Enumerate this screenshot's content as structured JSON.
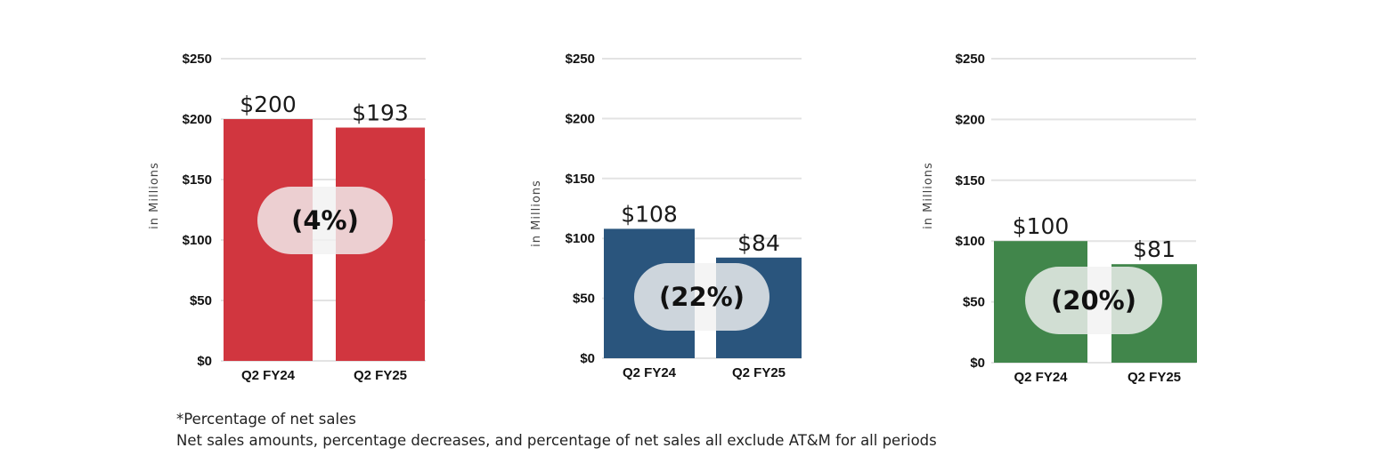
{
  "chart_data": [
    {
      "type": "bar",
      "categories": [
        "Q2 FY24",
        "Q2 FY25"
      ],
      "values": [
        200,
        193
      ],
      "value_labels": [
        "$200",
        "$193"
      ],
      "change_label": "(4%)",
      "ylabel": "in Millions",
      "ylim": [
        0,
        250
      ],
      "yticks": [
        0,
        50,
        100,
        150,
        200,
        250
      ],
      "ytick_labels": [
        "$0",
        "$50",
        "$100",
        "$150",
        "$200",
        "$250"
      ],
      "grid": true,
      "color": "#d1363f"
    },
    {
      "type": "bar",
      "categories": [
        "Q2 FY24",
        "Q2 FY25"
      ],
      "values": [
        108,
        84
      ],
      "value_labels": [
        "$108",
        "$84"
      ],
      "change_label": "(22%)",
      "ylabel": "in Millions",
      "ylim": [
        0,
        250
      ],
      "yticks": [
        0,
        50,
        100,
        150,
        200,
        250
      ],
      "ytick_labels": [
        "$0",
        "$50",
        "$100",
        "$150",
        "$200",
        "$250"
      ],
      "grid": true,
      "color": "#2a557d"
    },
    {
      "type": "bar",
      "categories": [
        "Q2 FY24",
        "Q2 FY25"
      ],
      "values": [
        100,
        81
      ],
      "value_labels": [
        "$100",
        "$81"
      ],
      "change_label": "(20%)",
      "ylabel": "in Millions",
      "ylim": [
        0,
        250
      ],
      "yticks": [
        0,
        50,
        100,
        150,
        200,
        250
      ],
      "ytick_labels": [
        "$0",
        "$50",
        "$100",
        "$150",
        "$200",
        "$250"
      ],
      "grid": true,
      "color": "#41864b"
    }
  ],
  "footnotes": {
    "line1": "*Percentage of net sales",
    "line2": "Net sales amounts, percentage decreases, and percentage of net sales all exclude AT&M for all periods"
  }
}
